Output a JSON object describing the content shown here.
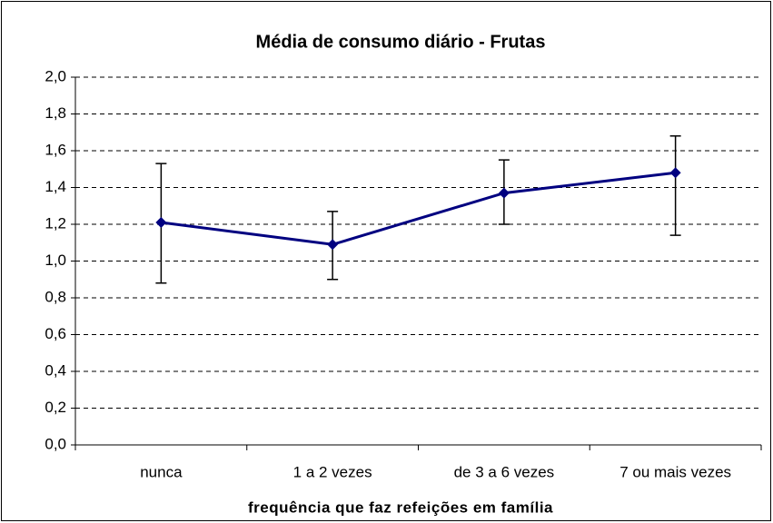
{
  "chart_data": {
    "type": "line",
    "title": "Média de consumo diário - Frutas",
    "x_label": "frequência que faz refeições em família",
    "categories": [
      "nunca",
      "1 a 2 vezes",
      "de 3 a 6 vezes",
      "7 ou mais vezes"
    ],
    "series": [
      {
        "name": "Frutas",
        "color": "#000080",
        "values": [
          1.21,
          1.09,
          1.37,
          1.48
        ],
        "error_upper": [
          0.32,
          0.18,
          0.18,
          0.2
        ],
        "error_lower": [
          0.33,
          0.19,
          0.17,
          0.34
        ]
      }
    ],
    "ylim": [
      0,
      2
    ],
    "yticks": [
      {
        "value": 0,
        "label": "0,0"
      },
      {
        "value": 0.2,
        "label": "0,2"
      },
      {
        "value": 0.4,
        "label": "0,4"
      },
      {
        "value": 0.6,
        "label": "0,6"
      },
      {
        "value": 0.8,
        "label": "0,8"
      },
      {
        "value": 1,
        "label": "1,0"
      },
      {
        "value": 1.2,
        "label": "1,2"
      },
      {
        "value": 1.4,
        "label": "1,4"
      },
      {
        "value": 1.6,
        "label": "1,6"
      },
      {
        "value": 1.8,
        "label": "1,8"
      },
      {
        "value": 2,
        "label": "2,0"
      }
    ],
    "grid": true
  }
}
